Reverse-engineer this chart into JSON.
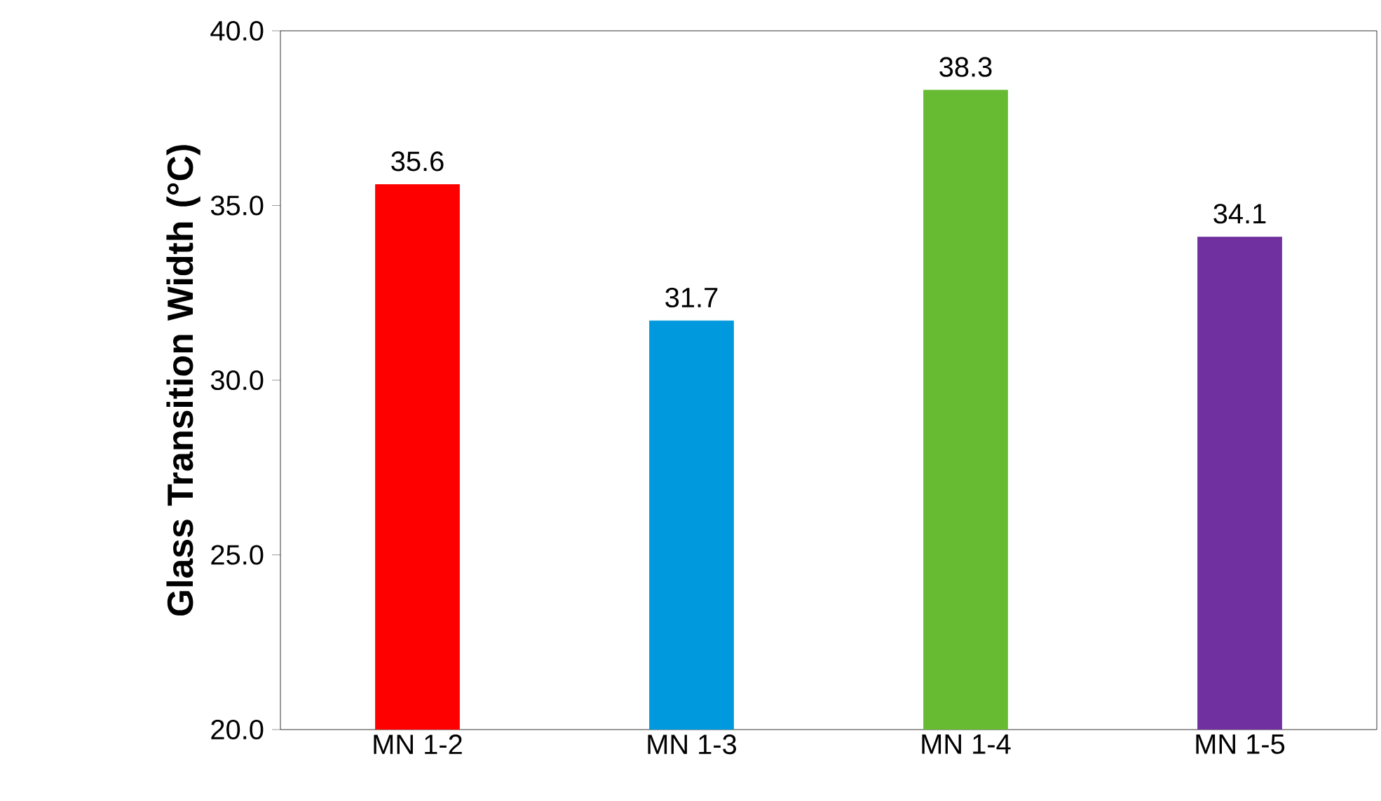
{
  "chart_data": {
    "type": "bar",
    "ylabel": "Glass Transition Width (°C)",
    "categories": [
      "MN 1-2",
      "MN 1-3",
      "MN 1-4",
      "MN 1-5"
    ],
    "values": [
      35.6,
      31.7,
      38.3,
      34.1
    ],
    "colors": [
      "#ff0000",
      "#0099dd",
      "#66bb33",
      "#7030a0"
    ],
    "ylim": [
      20,
      40
    ],
    "yticks": [
      {
        "value": 20,
        "label": "20.0"
      },
      {
        "value": 25,
        "label": "25.0"
      },
      {
        "value": 30,
        "label": "30.0"
      },
      {
        "value": 35,
        "label": "35.0"
      },
      {
        "value": 40,
        "label": "40.0"
      }
    ],
    "data_labels": true
  }
}
